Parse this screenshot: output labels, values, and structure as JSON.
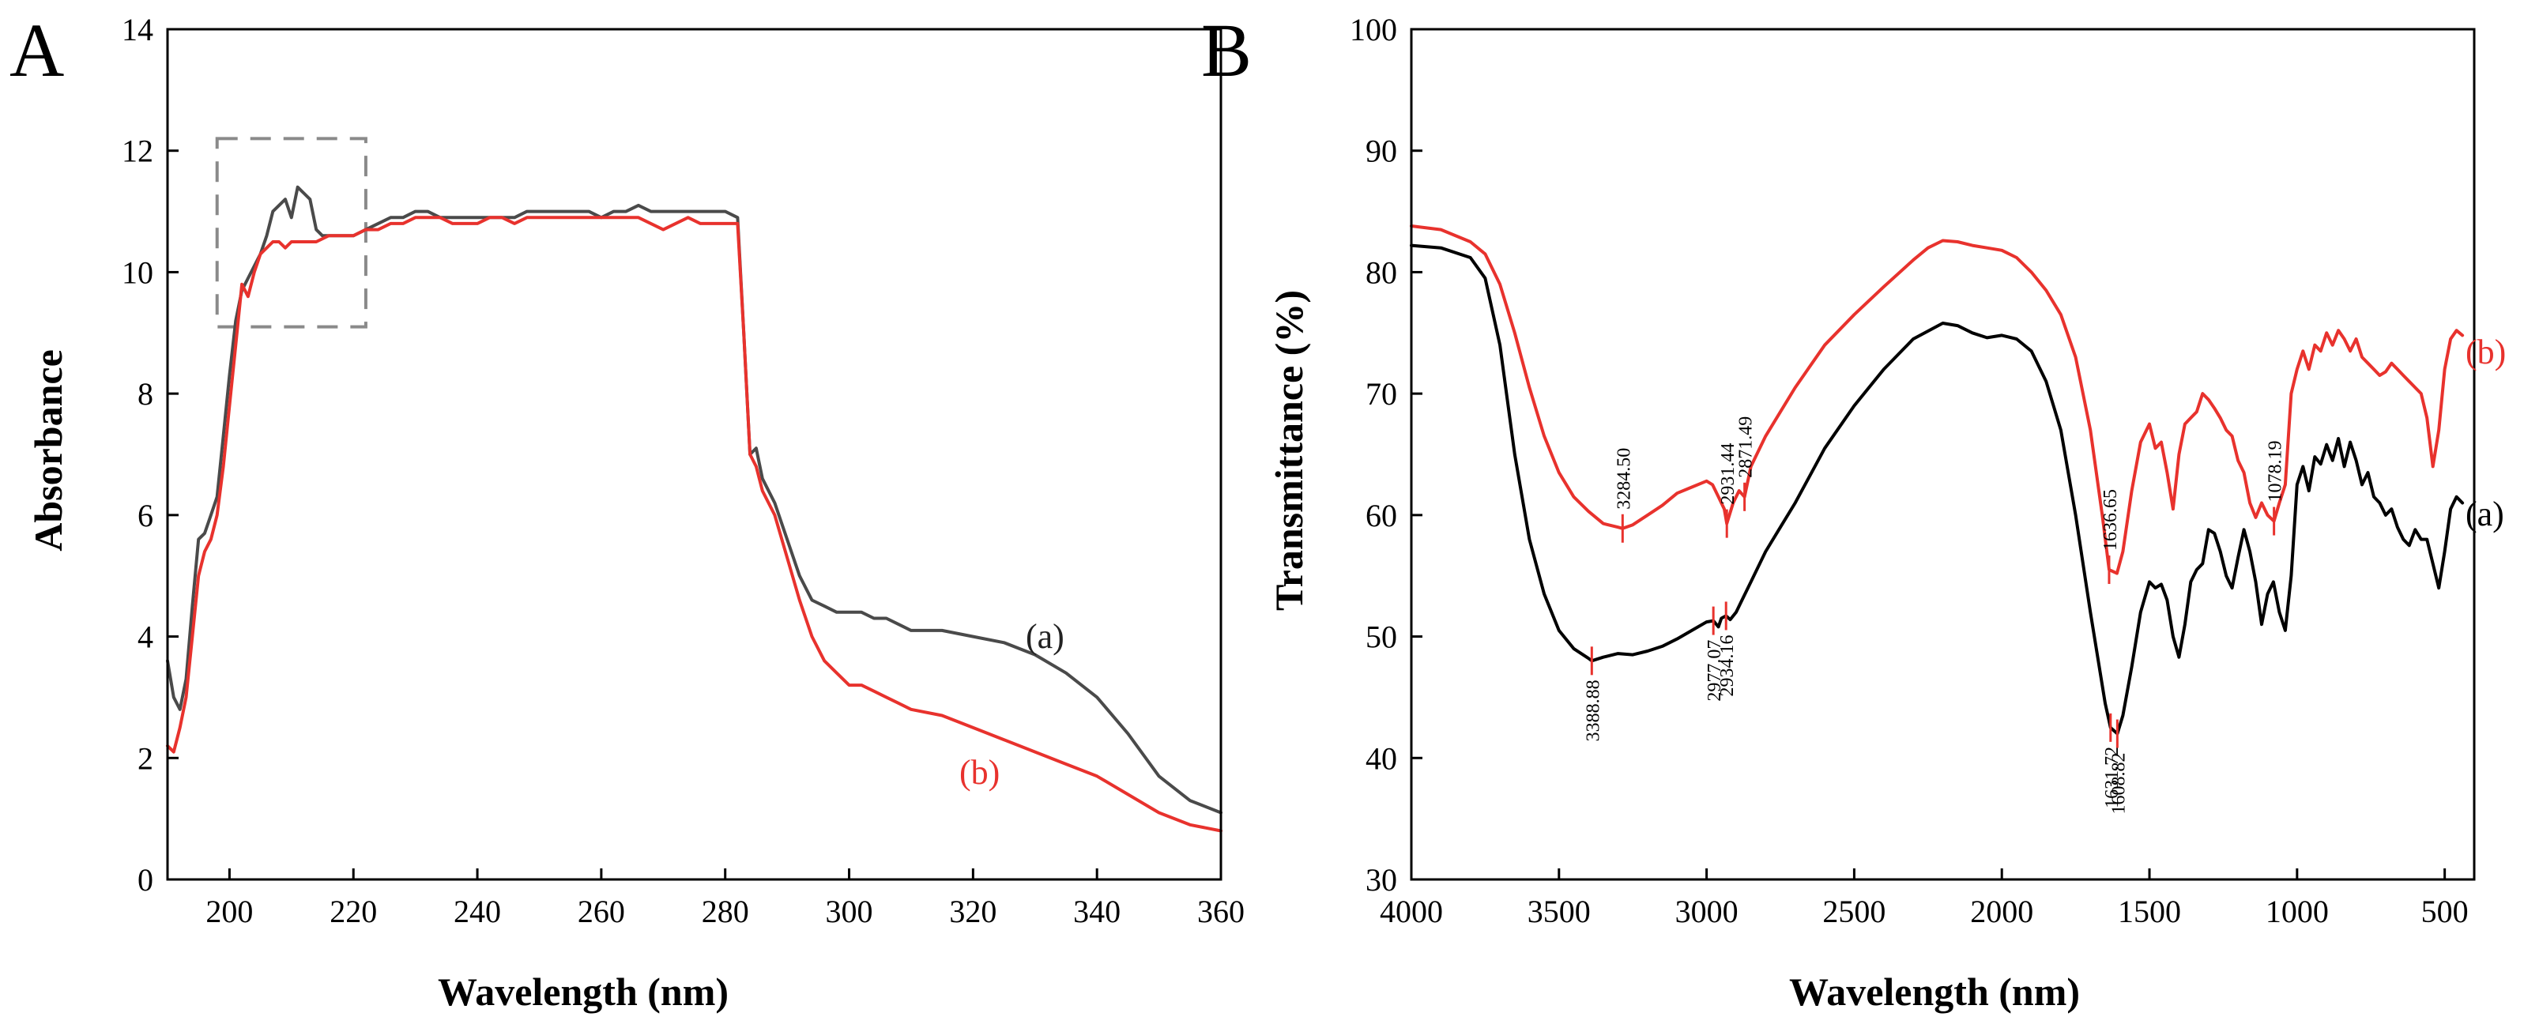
{
  "chart_data": [
    {
      "panel": "A",
      "type": "line",
      "title": "",
      "xlabel": "Wavelength (nm)",
      "ylabel": "Absorbance",
      "xlim": [
        190,
        360
      ],
      "ylim": [
        0,
        14
      ],
      "xticks": [
        200,
        220,
        240,
        260,
        280,
        300,
        320,
        340,
        360
      ],
      "yticks": [
        0,
        2,
        4,
        6,
        8,
        10,
        12,
        14
      ],
      "grid": false,
      "highlight_box": {
        "x_range": [
          198,
          222
        ],
        "y_range": [
          9.1,
          12.2
        ],
        "style": "dashed"
      },
      "series": [
        {
          "name": "(a)",
          "color": "#4a4a4a",
          "x": [
            190,
            191,
            192,
            193,
            194,
            195,
            196,
            197,
            198,
            199,
            200,
            201,
            202,
            203,
            204,
            205,
            206,
            207,
            208,
            209,
            210,
            211,
            212,
            213,
            214,
            215,
            216,
            218,
            220,
            222,
            224,
            226,
            228,
            230,
            232,
            234,
            236,
            238,
            240,
            242,
            244,
            246,
            248,
            250,
            252,
            254,
            256,
            258,
            260,
            262,
            264,
            266,
            268,
            270,
            272,
            274,
            276,
            278,
            280,
            282,
            283,
            284,
            285,
            286,
            288,
            290,
            292,
            294,
            296,
            298,
            300,
            302,
            304,
            306,
            308,
            310,
            315,
            320,
            325,
            330,
            335,
            340,
            345,
            350,
            355,
            360
          ],
          "values": [
            3.6,
            3.0,
            2.8,
            3.3,
            4.5,
            5.6,
            5.7,
            6.0,
            6.3,
            7.3,
            8.3,
            9.2,
            9.7,
            9.9,
            10.1,
            10.3,
            10.6,
            11.0,
            11.1,
            11.2,
            10.9,
            11.4,
            11.3,
            11.2,
            10.7,
            10.6,
            10.6,
            10.6,
            10.6,
            10.7,
            10.8,
            10.9,
            10.9,
            11.0,
            11.0,
            10.9,
            10.9,
            10.9,
            10.9,
            10.9,
            10.9,
            10.9,
            11.0,
            11.0,
            11.0,
            11.0,
            11.0,
            11.0,
            10.9,
            11.0,
            11.0,
            11.1,
            11.0,
            11.0,
            11.0,
            11.0,
            11.0,
            11.0,
            11.0,
            10.9,
            9.0,
            7.0,
            7.1,
            6.6,
            6.2,
            5.6,
            5.0,
            4.6,
            4.5,
            4.4,
            4.4,
            4.4,
            4.3,
            4.3,
            4.2,
            4.1,
            4.1,
            4.0,
            3.9,
            3.7,
            3.4,
            3.0,
            2.4,
            1.7,
            1.3,
            1.1
          ]
        },
        {
          "name": "(b)",
          "color": "#e8322d",
          "x": [
            190,
            191,
            192,
            193,
            194,
            195,
            196,
            197,
            198,
            199,
            200,
            201,
            202,
            203,
            204,
            205,
            206,
            207,
            208,
            209,
            210,
            212,
            214,
            216,
            218,
            220,
            222,
            224,
            226,
            228,
            230,
            232,
            234,
            236,
            238,
            240,
            242,
            244,
            246,
            248,
            250,
            252,
            254,
            256,
            258,
            260,
            262,
            264,
            266,
            268,
            270,
            272,
            274,
            276,
            278,
            280,
            282,
            283,
            284,
            285,
            286,
            288,
            290,
            292,
            294,
            296,
            298,
            300,
            302,
            304,
            306,
            308,
            310,
            315,
            320,
            325,
            330,
            335,
            340,
            345,
            350,
            355,
            360
          ],
          "values": [
            2.2,
            2.1,
            2.5,
            3.0,
            4.0,
            5.0,
            5.4,
            5.6,
            6.0,
            6.8,
            7.8,
            8.8,
            9.8,
            9.6,
            10.0,
            10.3,
            10.4,
            10.5,
            10.5,
            10.4,
            10.5,
            10.5,
            10.5,
            10.6,
            10.6,
            10.6,
            10.7,
            10.7,
            10.8,
            10.8,
            10.9,
            10.9,
            10.9,
            10.8,
            10.8,
            10.8,
            10.9,
            10.9,
            10.8,
            10.9,
            10.9,
            10.9,
            10.9,
            10.9,
            10.9,
            10.9,
            10.9,
            10.9,
            10.9,
            10.8,
            10.7,
            10.8,
            10.9,
            10.8,
            10.8,
            10.8,
            10.8,
            9.0,
            7.0,
            6.8,
            6.4,
            6.0,
            5.3,
            4.6,
            4.0,
            3.6,
            3.4,
            3.2,
            3.2,
            3.1,
            3.0,
            2.9,
            2.8,
            2.7,
            2.5,
            2.3,
            2.1,
            1.9,
            1.7,
            1.4,
            1.1,
            0.9,
            0.8
          ]
        }
      ]
    },
    {
      "panel": "B",
      "type": "line",
      "title": "",
      "xlabel": "Wavelength (nm)",
      "ylabel": "Transmittance (%)",
      "xlim": [
        4000,
        400
      ],
      "ylim": [
        30,
        100
      ],
      "xticks": [
        4000,
        3500,
        3000,
        2500,
        2000,
        1500,
        1000,
        500
      ],
      "yticks": [
        30,
        40,
        50,
        60,
        70,
        80,
        90,
        100
      ],
      "grid": false,
      "series": [
        {
          "name": "(a)",
          "color": "#000000",
          "x": [
            4000,
            3900,
            3800,
            3750,
            3700,
            3650,
            3600,
            3550,
            3500,
            3450,
            3400,
            3388.88,
            3350,
            3300,
            3250,
            3200,
            3150,
            3100,
            3050,
            3000,
            2977.07,
            2960,
            2950,
            2934.16,
            2920,
            2900,
            2880,
            2850,
            2800,
            2750,
            2700,
            2600,
            2500,
            2400,
            2300,
            2200,
            2150,
            2100,
            2050,
            2000,
            1950,
            1900,
            1850,
            1800,
            1750,
            1700,
            1650,
            1631.72,
            1608.82,
            1590,
            1560,
            1530,
            1500,
            1480,
            1460,
            1440,
            1420,
            1400,
            1380,
            1360,
            1340,
            1320,
            1300,
            1280,
            1260,
            1240,
            1220,
            1200,
            1180,
            1160,
            1140,
            1120,
            1100,
            1080,
            1060,
            1040,
            1020,
            1000,
            980,
            960,
            940,
            920,
            900,
            880,
            860,
            840,
            820,
            800,
            780,
            760,
            740,
            720,
            700,
            680,
            660,
            640,
            620,
            600,
            580,
            560,
            540,
            520,
            500,
            480,
            460,
            440
          ],
          "values": [
            82.2,
            82.0,
            81.2,
            79.5,
            74.0,
            65.0,
            58.0,
            53.5,
            50.5,
            49.0,
            48.2,
            48.0,
            48.3,
            48.6,
            48.5,
            48.8,
            49.2,
            49.8,
            50.5,
            51.2,
            51.3,
            50.8,
            51.5,
            51.7,
            51.4,
            52.0,
            53.0,
            54.5,
            57.0,
            59.0,
            61.0,
            65.5,
            69.0,
            72.0,
            74.5,
            75.8,
            75.6,
            75.0,
            74.6,
            74.8,
            74.5,
            73.5,
            71.0,
            67.0,
            60.0,
            52.0,
            44.5,
            42.5,
            42.0,
            43.5,
            47.5,
            52.0,
            54.5,
            54.0,
            54.3,
            53.0,
            50.0,
            48.3,
            51.0,
            54.5,
            55.5,
            56.0,
            58.8,
            58.5,
            57.0,
            55.0,
            54.0,
            56.5,
            58.8,
            57.0,
            54.5,
            51.0,
            53.5,
            54.5,
            52.0,
            50.5,
            55.0,
            62.5,
            64.0,
            62.0,
            64.8,
            64.2,
            65.8,
            64.5,
            66.3,
            64.0,
            66.0,
            64.5,
            62.5,
            63.5,
            61.5,
            61.0,
            60.0,
            60.5,
            59.0,
            58.0,
            57.5,
            58.8,
            58.0,
            58.0,
            56.0,
            54.0,
            57.0,
            60.5,
            61.5,
            61.0
          ]
        },
        {
          "name": "(b)",
          "color": "#e8322d",
          "x": [
            4000,
            3900,
            3800,
            3750,
            3700,
            3650,
            3600,
            3550,
            3500,
            3450,
            3400,
            3350,
            3300,
            3284.5,
            3250,
            3200,
            3150,
            3100,
            3050,
            3000,
            2980,
            2960,
            2940,
            2931.44,
            2910,
            2890,
            2871.49,
            2850,
            2800,
            2750,
            2700,
            2600,
            2500,
            2400,
            2300,
            2250,
            2200,
            2150,
            2100,
            2050,
            2000,
            1950,
            1900,
            1850,
            1800,
            1750,
            1700,
            1660,
            1636.65,
            1610,
            1590,
            1560,
            1530,
            1500,
            1480,
            1460,
            1440,
            1420,
            1400,
            1380,
            1360,
            1340,
            1320,
            1300,
            1280,
            1260,
            1240,
            1220,
            1200,
            1180,
            1160,
            1140,
            1120,
            1100,
            1078.19,
            1060,
            1040,
            1020,
            1000,
            980,
            960,
            940,
            920,
            900,
            880,
            860,
            840,
            820,
            800,
            780,
            760,
            740,
            720,
            700,
            680,
            660,
            640,
            620,
            600,
            580,
            560,
            540,
            520,
            500,
            480,
            460,
            440
          ],
          "values": [
            83.8,
            83.5,
            82.5,
            81.5,
            79.0,
            75.0,
            70.5,
            66.5,
            63.5,
            61.5,
            60.3,
            59.3,
            59.0,
            58.9,
            59.2,
            60.0,
            60.8,
            61.8,
            62.3,
            62.8,
            62.5,
            61.5,
            60.5,
            59.3,
            61.0,
            62.0,
            61.5,
            64.0,
            66.5,
            68.5,
            70.5,
            74.0,
            76.5,
            78.8,
            81.0,
            82.0,
            82.6,
            82.5,
            82.2,
            82.0,
            81.8,
            81.2,
            80.0,
            78.5,
            76.5,
            73.0,
            67.0,
            60.0,
            55.5,
            55.2,
            57.0,
            62.0,
            66.0,
            67.5,
            65.5,
            66.0,
            63.5,
            60.5,
            65.0,
            67.5,
            68.0,
            68.5,
            70.0,
            69.5,
            68.8,
            68.0,
            67.0,
            66.5,
            64.5,
            63.5,
            61.0,
            59.8,
            61.0,
            60.0,
            59.5,
            61.0,
            62.5,
            70.0,
            72.0,
            73.5,
            72.0,
            74.0,
            73.5,
            75.0,
            74.0,
            75.2,
            74.5,
            73.5,
            74.5,
            73.0,
            72.5,
            72.0,
            71.5,
            71.8,
            72.5,
            72.0,
            71.5,
            71.0,
            70.5,
            70.0,
            68.0,
            64.0,
            67.0,
            72.0,
            74.5,
            75.2,
            74.8
          ]
        }
      ],
      "annotations": [
        {
          "label": "3284.50",
          "x": 3284.5,
          "y": 58.9,
          "series": "(b)",
          "position": "above"
        },
        {
          "label": "2931.44",
          "x": 2931.44,
          "y": 59.3,
          "series": "(b)",
          "position": "above"
        },
        {
          "label": "2871.49",
          "x": 2871.49,
          "y": 61.5,
          "series": "(b)",
          "position": "above"
        },
        {
          "label": "1636.65",
          "x": 1636.65,
          "y": 55.5,
          "series": "(b)",
          "position": "above"
        },
        {
          "label": "1078.19",
          "x": 1078.19,
          "y": 59.5,
          "series": "(b)",
          "position": "above"
        },
        {
          "label": "3388.88",
          "x": 3388.88,
          "y": 48.0,
          "series": "(a)",
          "position": "below"
        },
        {
          "label": "2977.07",
          "x": 2977.07,
          "y": 51.3,
          "series": "(a)",
          "position": "below"
        },
        {
          "label": "2934.16",
          "x": 2934.16,
          "y": 51.7,
          "series": "(a)",
          "position": "below"
        },
        {
          "label": "1631.72",
          "x": 1631.72,
          "y": 42.5,
          "series": "(a)",
          "position": "below"
        },
        {
          "label": "1608.82",
          "x": 1608.82,
          "y": 42.0,
          "series": "(a)",
          "position": "below"
        }
      ]
    }
  ]
}
